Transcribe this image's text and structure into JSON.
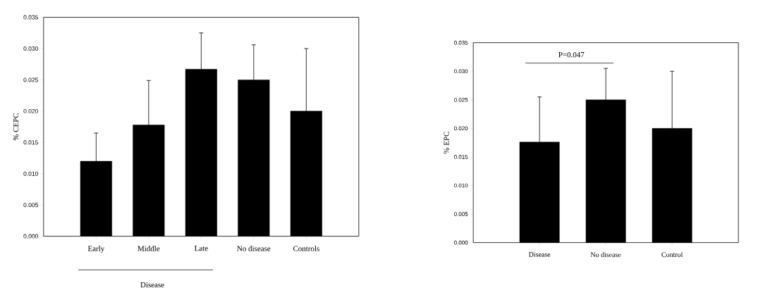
{
  "chart_data": [
    {
      "type": "bar",
      "ylabel": "% CEPC",
      "categories": [
        "Early",
        "Middle",
        "Late",
        "No disease",
        "Controls"
      ],
      "values": [
        0.012,
        0.0178,
        0.0267,
        0.025,
        0.02
      ],
      "errors": [
        [
          0.012,
          0.0165
        ],
        [
          0.0178,
          0.0249
        ],
        [
          0.0267,
          0.0325
        ],
        [
          0.025,
          0.0306
        ],
        [
          0.02,
          0.03
        ]
      ],
      "color": "#000000",
      "ylim": [
        0,
        0.035
      ],
      "yticks": [
        {
          "value": 0,
          "label": "0.000"
        },
        {
          "value": 0.005,
          "label": "0.005"
        },
        {
          "value": 0.01,
          "label": "0.010"
        },
        {
          "value": 0.015,
          "label": "0.015"
        },
        {
          "value": 0.02,
          "label": "0.020"
        },
        {
          "value": 0.025,
          "label": "0.025"
        },
        {
          "value": 0.03,
          "label": "0.030"
        },
        {
          "value": 0.035,
          "label": "0.035"
        }
      ],
      "annotations": [
        "Disease"
      ]
    },
    {
      "type": "bar",
      "ylabel": "% EPC",
      "categories": [
        "Disease",
        "No disease",
        "Control"
      ],
      "values": [
        0.0176,
        0.025,
        0.02
      ],
      "errors": [
        [
          0.0176,
          0.0255
        ],
        [
          0.025,
          0.0305
        ],
        [
          0.02,
          0.03
        ]
      ],
      "color": "#000000",
      "ylim": [
        0,
        0.035
      ],
      "yticks": [
        {
          "value": 0,
          "label": "0.000"
        },
        {
          "value": 0.005,
          "label": "0.005"
        },
        {
          "value": 0.01,
          "label": "0.010"
        },
        {
          "value": 0.015,
          "label": "0.015"
        },
        {
          "value": 0.02,
          "label": "0.020"
        },
        {
          "value": 0.025,
          "label": "0.025"
        },
        {
          "value": 0.03,
          "label": "0.030"
        },
        {
          "value": 0.035,
          "label": "0.035"
        }
      ],
      "annotations": [
        "P=0.047"
      ]
    }
  ]
}
